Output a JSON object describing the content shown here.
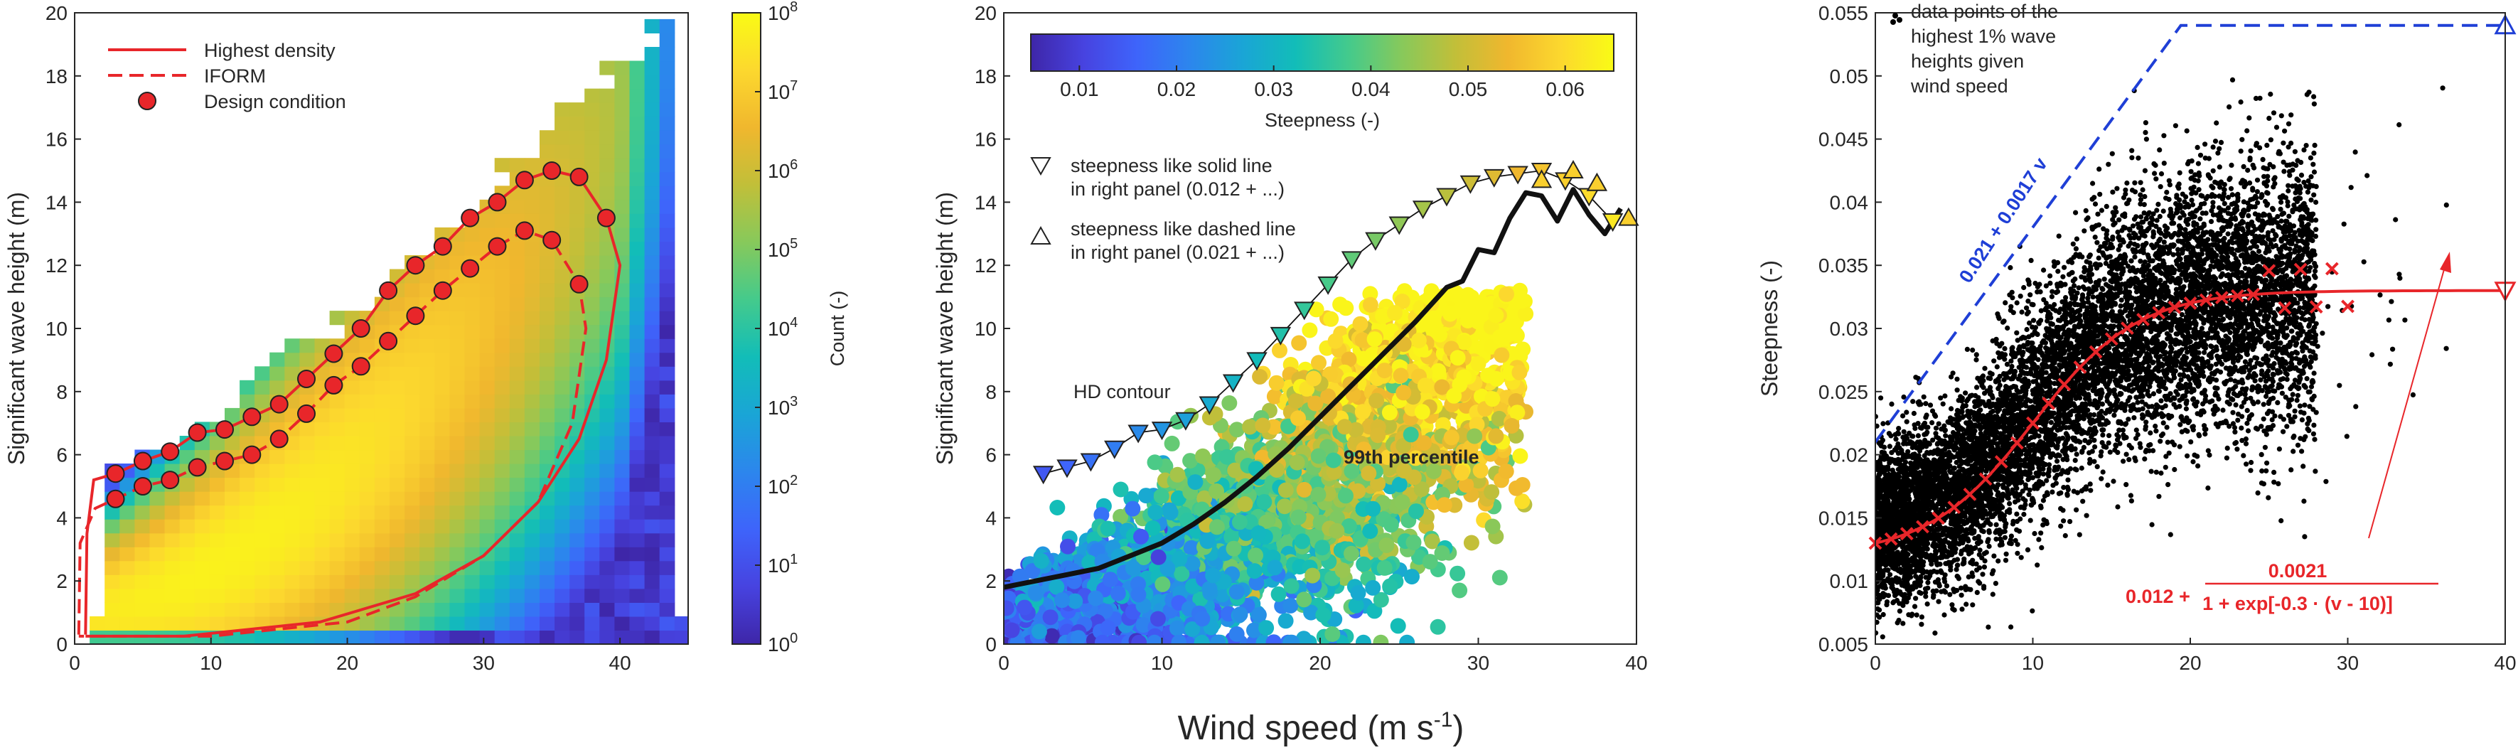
{
  "figure": {
    "shared_xlabel": "Wind speed (m s",
    "shared_xlabel_sup": "-1",
    "shared_xlabel_close": ")"
  },
  "chart_data": [
    {
      "type": "heatmap",
      "panel": "left",
      "xlabel": "",
      "ylabel": "Significant wave height (m)",
      "xlim": [
        0,
        45
      ],
      "ylim": [
        0,
        20
      ],
      "xticks": [
        "0",
        "10",
        "20",
        "30",
        "40"
      ],
      "yticks": [
        "0",
        "2",
        "4",
        "6",
        "8",
        "10",
        "12",
        "14",
        "16",
        "18",
        "20"
      ],
      "colorbar": {
        "label": "Count (-)",
        "scale": "log",
        "range": [
          1,
          100000000
        ],
        "tick_base": "10",
        "tick_exponents": [
          "0",
          "1",
          "2",
          "3",
          "4",
          "5",
          "6",
          "7",
          "8"
        ],
        "colormap": [
          "#3e26a8",
          "#4743e0",
          "#3e64fb",
          "#2c86ed",
          "#1aa5d6",
          "#12bdb8",
          "#44ca8c",
          "#87c95b",
          "#c1bf39",
          "#f0b72e",
          "#fcd82e",
          "#f9fb15"
        ]
      },
      "legend": {
        "placement": "top-left",
        "entries": [
          {
            "label": "Highest density",
            "style": "solid-line",
            "color": "#e8262a"
          },
          {
            "label": "IFORM",
            "style": "dashed-line",
            "color": "#e8262a"
          },
          {
            "label": "Design condition",
            "style": "circle-marker",
            "color": "#e8262a"
          }
        ]
      },
      "design_conditions": [
        [
          3,
          5.4
        ],
        [
          5,
          5.8
        ],
        [
          7,
          6.1
        ],
        [
          9,
          6.7
        ],
        [
          11,
          6.8
        ],
        [
          13,
          7.2
        ],
        [
          15,
          7.6
        ],
        [
          17,
          8.4
        ],
        [
          19,
          9.2
        ],
        [
          21,
          10.0
        ],
        [
          23,
          11.2
        ],
        [
          25,
          12.0
        ],
        [
          27,
          12.6
        ],
        [
          29,
          13.5
        ],
        [
          31,
          14.0
        ],
        [
          33,
          14.7
        ],
        [
          35,
          15.0
        ],
        [
          37,
          14.8
        ],
        [
          39,
          13.5
        ],
        [
          3,
          4.6
        ],
        [
          5,
          5.0
        ],
        [
          7,
          5.2
        ],
        [
          9,
          5.6
        ],
        [
          11,
          5.8
        ],
        [
          13,
          6.0
        ],
        [
          15,
          6.5
        ],
        [
          17,
          7.3
        ],
        [
          19,
          8.2
        ],
        [
          21,
          8.8
        ],
        [
          23,
          9.6
        ],
        [
          25,
          10.4
        ],
        [
          27,
          11.2
        ],
        [
          29,
          11.9
        ],
        [
          31,
          12.6
        ],
        [
          33,
          13.1
        ],
        [
          35,
          12.8
        ],
        [
          37,
          11.4
        ]
      ]
    },
    {
      "type": "scatter",
      "panel": "middle",
      "xlabel": "",
      "ylabel": "Significant wave height (m)",
      "xlim": [
        0,
        40
      ],
      "ylim": [
        0,
        20
      ],
      "xticks": [
        "0",
        "10",
        "20",
        "30",
        "40"
      ],
      "yticks": [
        "0",
        "2",
        "4",
        "6",
        "8",
        "10",
        "12",
        "14",
        "16",
        "18",
        "20"
      ],
      "colorbar": {
        "label": "Steepness (-)",
        "range": [
          0.005,
          0.065
        ],
        "placement": "top-inside",
        "ticks": [
          "0.01",
          "0.02",
          "0.03",
          "0.04",
          "0.05",
          "0.06"
        ]
      },
      "legend": {
        "placement": "upper-left",
        "entries": [
          {
            "marker": "down-triangle",
            "lines": [
              "steepness like solid line",
              "in right panel (0.012 + ...)"
            ]
          },
          {
            "marker": "up-triangle",
            "lines": [
              "steepness like dashed line",
              "in right panel (0.021 + ...)"
            ]
          }
        ]
      },
      "annotations": [
        "HD contour",
        "99th percentile"
      ],
      "percentile_line": {
        "x": [
          0,
          2,
          4,
          6,
          8,
          10,
          12,
          14,
          16,
          18,
          20,
          22,
          24,
          26,
          28,
          29,
          30,
          31,
          32,
          33,
          34,
          35,
          36,
          37,
          38,
          39
        ],
        "y": [
          1.8,
          2.0,
          2.2,
          2.4,
          2.8,
          3.2,
          3.8,
          4.5,
          5.3,
          6.2,
          7.2,
          8.2,
          9.2,
          10.2,
          11.3,
          11.5,
          12.5,
          12.4,
          13.5,
          14.3,
          14.2,
          13.4,
          14.4,
          13.6,
          13.0,
          13.8
        ]
      },
      "triangles_down": {
        "x": [
          2.5,
          4,
          5.5,
          7,
          8.5,
          10,
          11.5,
          13,
          14.5,
          16,
          17.5,
          19,
          20.5,
          22,
          23.5,
          25,
          26.5,
          28,
          29.5,
          31,
          32.5,
          34,
          35.5,
          37,
          38.5
        ],
        "y": [
          5.4,
          5.6,
          5.8,
          6.2,
          6.7,
          6.8,
          7.1,
          7.6,
          8.3,
          9.0,
          9.8,
          10.6,
          11.4,
          12.2,
          12.8,
          13.3,
          13.8,
          14.2,
          14.6,
          14.8,
          14.9,
          15.0,
          14.7,
          14.2,
          13.4
        ]
      },
      "triangles_up": {
        "x": [
          34,
          36,
          37.5,
          39.5
        ],
        "y": [
          14.7,
          15.0,
          14.6,
          13.5
        ]
      }
    },
    {
      "type": "scatter",
      "panel": "right",
      "xlabel": "",
      "ylabel": "Steepness (-)",
      "xlim": [
        0,
        40
      ],
      "ylim": [
        0.005,
        0.055
      ],
      "xticks": [
        "0",
        "10",
        "20",
        "30",
        "40"
      ],
      "yticks": [
        "0.005",
        "0.01",
        "0.015",
        "0.02",
        "0.025",
        "0.03",
        "0.035",
        "0.04",
        "0.045",
        "0.05",
        "0.055"
      ],
      "legend": {
        "placement": "top-left",
        "lines": [
          "data points of the",
          "highest 1% wave",
          "heights given",
          "wind speed"
        ]
      },
      "annotations": {
        "blue_line_label": "0.021 + 0.0017 v",
        "red_formula_prefix": "0.012 +",
        "red_formula_num": "0.0021",
        "red_formula_den": "1 + exp[-0.3 · (v - 10)]"
      },
      "blue_dashed": {
        "x": [
          0,
          19.4,
          40
        ],
        "y": [
          0.021,
          0.054,
          0.054
        ]
      },
      "red_fit_params": {
        "a": 0.012,
        "b": 0.0021,
        "k": 0.3,
        "v0": 10
      },
      "red_cross_x": [
        0,
        1,
        2,
        3,
        4,
        5,
        6,
        7,
        8,
        9,
        10,
        11,
        12,
        13,
        14,
        15,
        16,
        17,
        18,
        19,
        20,
        21,
        22,
        23,
        24,
        25,
        26,
        27,
        28,
        29,
        30
      ]
    }
  ]
}
